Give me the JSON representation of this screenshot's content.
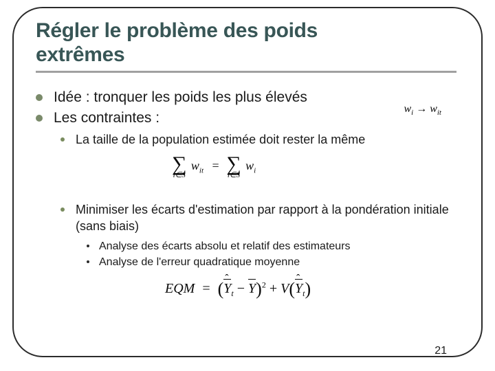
{
  "title_line1": "Régler le problème des poids",
  "title_line2": "extrêmes",
  "bullets": {
    "b1": "Idée : tronquer les poids les plus élevés",
    "b2": "Les contraintes :",
    "b2_1": "La taille de la population estimée doit rester la même",
    "b2_2": "Minimiser les écarts d'estimation par rapport à la pondération initiale (sans biais)",
    "b2_2_1": "Analyse des écarts absolu et relatif des estimateurs",
    "b2_2_2": "Analyse de l'erreur quadratique moyenne"
  },
  "formula_inline": {
    "left_var": "w",
    "left_sub": "i",
    "arrow": "→",
    "right_var": "w",
    "right_sub": "it"
  },
  "formula_sum": {
    "sigma": "∑",
    "domain": "i∈S",
    "w": "w",
    "sub_left": "it",
    "sub_right": "i",
    "eq": "="
  },
  "eqm": {
    "lhs": "EQM",
    "Y": "Y",
    "sub_t": "t",
    "minus": "−",
    "plus": "+",
    "V": "V",
    "two": "2",
    "eq": "="
  },
  "page_number": "21",
  "colors": {
    "title": "#385656",
    "underline": "#a0a0a0",
    "frame": "#2b2b2b",
    "bullet_l1": "#7a8a6a",
    "bullet_l2": "#7a8c5f",
    "bullet_l3": "#2b2b2b",
    "text": "#1a1a1a",
    "background": "#ffffff"
  }
}
